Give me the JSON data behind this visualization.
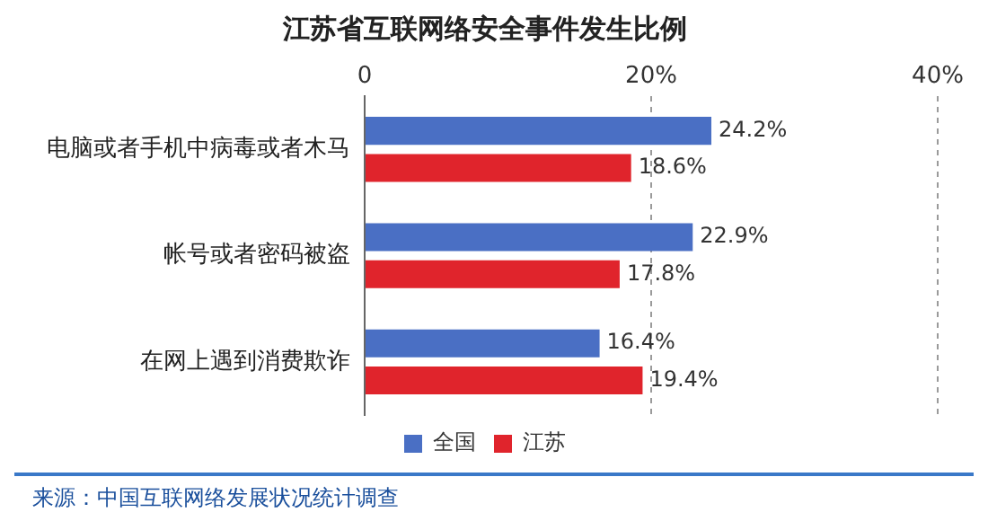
{
  "chart_data": {
    "type": "bar",
    "orientation": "horizontal",
    "title": "江苏省互联网络安全事件发生比例",
    "categories": [
      "电脑或者手机中病毒或者木马",
      "帐号或者密码被盗",
      "在网上遇到消费欺诈"
    ],
    "series": [
      {
        "name": "全国",
        "color": "#4a6fc4",
        "values": [
          24.2,
          22.9,
          16.4
        ],
        "value_labels": [
          "24.2%",
          "22.9%",
          "16.4%"
        ]
      },
      {
        "name": "江苏",
        "color": "#e0242c",
        "values": [
          18.6,
          17.8,
          19.4
        ],
        "value_labels": [
          "18.6%",
          "17.8%",
          "19.4%"
        ]
      }
    ],
    "xlim": [
      0,
      40
    ],
    "xticks": [
      0,
      {
        "value": 20,
        "label": "20%"
      },
      {
        "value": 40,
        "label": "40%"
      }
    ],
    "grid": "x",
    "legend": "bottom",
    "annotations": [
      "来源：中国互联网络发展状况统计调查"
    ]
  }
}
